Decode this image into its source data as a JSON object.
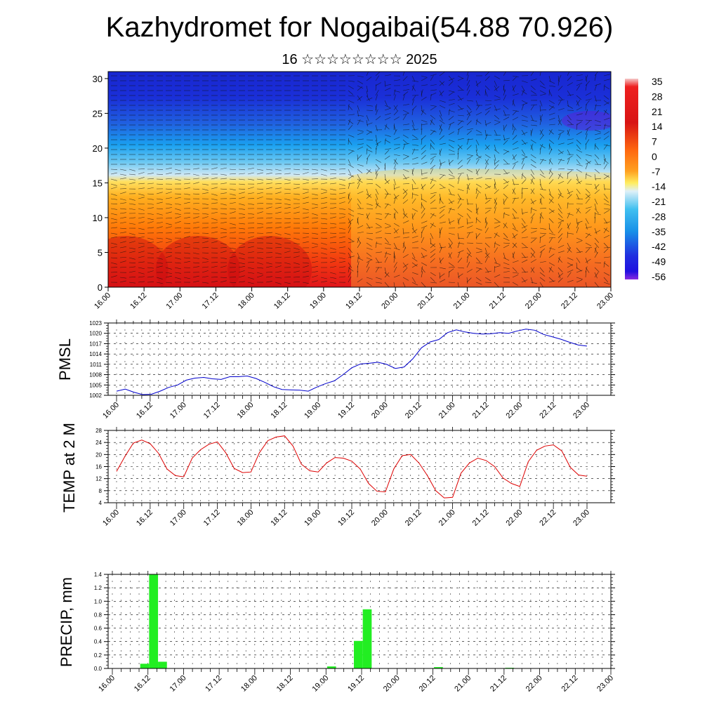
{
  "title": "Kazhydromet for Nogaibai(54.88 70.926)",
  "subtitle": "16 ☆☆☆☆☆☆☆☆ 2025",
  "chart_data": [
    {
      "type": "heatmap",
      "name": "cross-section",
      "x_ticks": [
        "16.00",
        "16.12",
        "17.00",
        "17.12",
        "18.00",
        "18.12",
        "19.00",
        "19.12",
        "20.00",
        "20.12",
        "21.00",
        "21.12",
        "22.00",
        "22.12",
        "23.00"
      ],
      "y_ticks": [
        0,
        5,
        10,
        15,
        20,
        25,
        30
      ],
      "ylim": [
        0,
        31
      ],
      "colorbar_labels": [
        "35",
        "28",
        "21",
        "14",
        "7",
        "0",
        "-7",
        "-14",
        "-21",
        "-28",
        "-35",
        "-42",
        "-49",
        "-56"
      ],
      "colors": {
        "hot": "#dd1010",
        "warm": "#ff8c00",
        "mild": "#ffe040",
        "cool": "#2aa8f0",
        "cold": "#1a2fd8",
        "coldest": "#7b1fd8"
      },
      "overlay": "wind barbs"
    },
    {
      "type": "line",
      "name": "pmsl",
      "ylabel": "PMSL",
      "x_ticks": [
        "16.00",
        "16.12",
        "17.00",
        "17.12",
        "18.00",
        "18.12",
        "19.00",
        "19.12",
        "20.00",
        "20.12",
        "21.00",
        "21.12",
        "22.00",
        "22.12",
        "23.00"
      ],
      "y_ticks": [
        1002,
        1005,
        1008,
        1011,
        1014,
        1017,
        1020,
        1023
      ],
      "ylim": [
        1002,
        1023
      ],
      "line_color": "#0000cc",
      "values": [
        1003.2,
        1003.8,
        1002.9,
        1002.2,
        1002.3,
        1003.2,
        1004.3,
        1005.0,
        1006.4,
        1007.0,
        1007.2,
        1006.8,
        1006.6,
        1007.4,
        1007.4,
        1007.6,
        1006.9,
        1005.8,
        1004.5,
        1003.7,
        1003.6,
        1003.5,
        1003.2,
        1004.4,
        1005.4,
        1006.2,
        1008.0,
        1010.0,
        1011.1,
        1011.3,
        1011.6,
        1011.0,
        1009.8,
        1010.2,
        1012.6,
        1015.8,
        1017.5,
        1018.2,
        1020.2,
        1021.0,
        1020.4,
        1020.0,
        1019.8,
        1019.9,
        1020.2,
        1020.0,
        1020.7,
        1021.2,
        1020.9,
        1019.7,
        1019.0,
        1018.3,
        1017.4,
        1016.6,
        1016.3
      ]
    },
    {
      "type": "line",
      "name": "temp",
      "ylabel": "TEMP at 2 M",
      "x_ticks": [
        "16.00",
        "16.12",
        "17.00",
        "17.12",
        "18.00",
        "18.12",
        "19.00",
        "19.12",
        "20.00",
        "20.12",
        "21.00",
        "21.12",
        "22.00",
        "22.12",
        "23.00"
      ],
      "y_ticks": [
        4,
        8,
        12,
        16,
        20,
        24,
        28
      ],
      "ylim": [
        4,
        28
      ],
      "line_color": "#dd0000",
      "values": [
        14.4,
        19.4,
        23.8,
        24.8,
        23.6,
        20.4,
        15.2,
        13.0,
        12.6,
        18.8,
        21.6,
        23.4,
        24.2,
        20.6,
        15.4,
        14.0,
        14.2,
        20.6,
        24.6,
        25.8,
        26.2,
        22.8,
        16.8,
        14.6,
        14.2,
        17.2,
        19.0,
        18.8,
        17.8,
        15.2,
        10.4,
        7.8,
        7.6,
        15.2,
        19.6,
        20.0,
        17.2,
        13.0,
        8.0,
        5.6,
        5.8,
        13.8,
        17.2,
        18.8,
        18.0,
        16.0,
        12.2,
        10.4,
        9.4,
        17.6,
        21.4,
        22.8,
        23.2,
        21.2,
        15.8,
        13.2,
        12.8
      ]
    },
    {
      "type": "bar",
      "name": "precip",
      "ylabel": "PRECIP, mm",
      "x_ticks": [
        "16.00",
        "16.12",
        "17.00",
        "17.12",
        "18.00",
        "18.12",
        "19.00",
        "19.12",
        "20.00",
        "20.12",
        "21.00",
        "21.12",
        "22.00",
        "22.12",
        "23.00"
      ],
      "y_ticks": [
        "0.0",
        "0.2",
        "0.4",
        "0.6",
        "0.8",
        "1.0",
        "1.2",
        "1.4"
      ],
      "ylim": [
        0,
        1.4
      ],
      "bar_color": "#22ee22",
      "bars": [
        {
          "x": 3,
          "value": 0.07
        },
        {
          "x": 4,
          "value": 1.4
        },
        {
          "x": 5,
          "value": 0.1
        },
        {
          "x": 24,
          "value": 0.03
        },
        {
          "x": 27,
          "value": 0.41
        },
        {
          "x": 28,
          "value": 0.88
        },
        {
          "x": 36,
          "value": 0.02
        },
        {
          "x": 44,
          "value": 0.01
        }
      ]
    }
  ]
}
